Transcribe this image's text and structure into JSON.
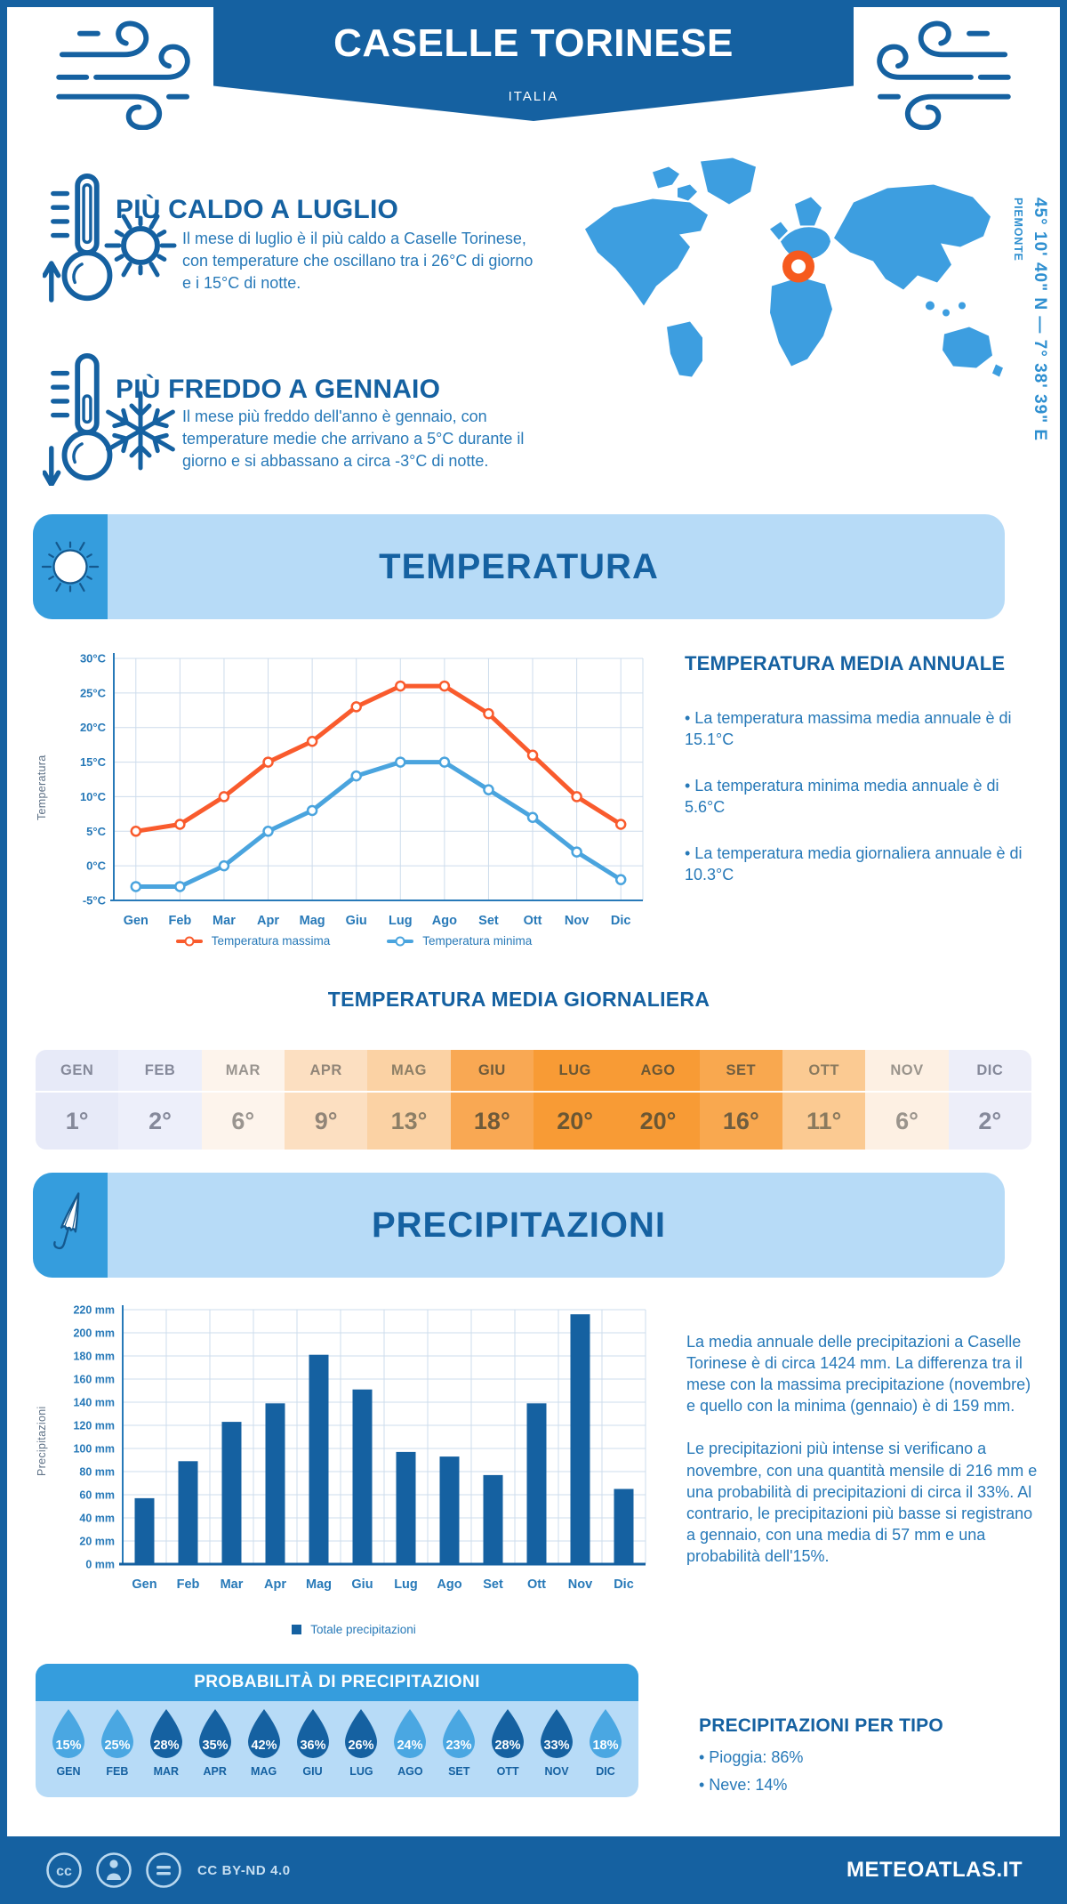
{
  "header": {
    "title": "CASELLE TORINESE",
    "subtitle": "ITALIA"
  },
  "intro": {
    "warm": {
      "title": "PIÙ CALDO A LUGLIO",
      "text": "Il mese di luglio è il più caldo a Caselle Torinese, con temperature che oscillano tra i 26°C di giorno e i 15°C di notte."
    },
    "cold": {
      "title": "PIÙ FREDDO A GENNAIO",
      "text": "Il mese più freddo dell'anno è gennaio, con temperature medie che arrivano a 5°C durante il giorno e si abbassano a circa -3°C di notte."
    },
    "map": {
      "coordinates": "45° 10' 40\" N — 7° 38' 39\" E",
      "region": "PIEMONTE"
    }
  },
  "temperature": {
    "section_title": "TEMPERATURA",
    "annual": {
      "title": "TEMPERATURA MEDIA ANNUALE",
      "bullets": [
        "• La temperatura massima media annuale è di 15.1°C",
        "• La temperatura minima media annuale è di 5.6°C",
        "• La temperatura media giornaliera annuale è di 10.3°C"
      ]
    },
    "daily_title": "TEMPERATURA MEDIA GIORNALIERA",
    "daily_table": {
      "months": [
        "GEN",
        "FEB",
        "MAR",
        "APR",
        "MAG",
        "GIU",
        "LUG",
        "AGO",
        "SET",
        "OTT",
        "NOV",
        "DIC"
      ],
      "values": [
        "1°",
        "2°",
        "6°",
        "9°",
        "13°",
        "18°",
        "20°",
        "20°",
        "16°",
        "11°",
        "6°",
        "2°"
      ],
      "cell_colors": [
        "#e7eaf8",
        "#edeffa",
        "#fdf4ec",
        "#fcdfc1",
        "#fbd2a4",
        "#f9a853",
        "#f89b35",
        "#f89b35",
        "#f9a84f",
        "#fbca92",
        "#fdf0e3",
        "#edeef9"
      ],
      "text_colors": [
        "#85899a",
        "#85899a",
        "#9a9590",
        "#918578",
        "#8d7f66",
        "#6e5a3a",
        "#6b5734",
        "#6b5734",
        "#6f5d40",
        "#8a7a5e",
        "#9a948c",
        "#85899a"
      ]
    }
  },
  "precipitation": {
    "section_title": "PRECIPITAZIONI",
    "paragraphs": [
      "La media annuale delle precipitazioni a Caselle Torinese è di circa 1424 mm. La differenza tra il mese con la massima precipitazione (novembre) e quello con la minima (gennaio) è di 159 mm.",
      "Le precipitazioni più intense si verificano a novembre, con una quantità mensile di 216 mm e una probabilità di precipitazioni di circa il 33%. Al contrario, le precipitazioni più basse si registrano a gennaio, con una media di 57 mm e una probabilità dell'15%."
    ],
    "probability": {
      "title": "PROBABILITÀ DI PRECIPITAZIONI",
      "months": [
        "GEN",
        "FEB",
        "MAR",
        "APR",
        "MAG",
        "GIU",
        "LUG",
        "AGO",
        "SET",
        "OTT",
        "NOV",
        "DIC"
      ],
      "values": [
        "15%",
        "25%",
        "28%",
        "35%",
        "42%",
        "36%",
        "26%",
        "24%",
        "23%",
        "28%",
        "33%",
        "18%"
      ],
      "dark": [
        false,
        false,
        true,
        true,
        true,
        true,
        true,
        false,
        false,
        true,
        true,
        false
      ]
    },
    "by_type": {
      "title": "PRECIPITAZIONI PER TIPO",
      "bullets": [
        "• Pioggia: 86%",
        "• Neve: 14%"
      ]
    }
  },
  "footer": {
    "license": "CC BY-ND 4.0",
    "site": "METEOATLAS.IT"
  },
  "colors": {
    "dark_blue": "#1561a1",
    "mid_blue": "#359ddd",
    "light_blue": "#b7dbf7",
    "map_blue": "#3d9ee0",
    "marker_orange": "#f65a1e",
    "grid": "#cddcec",
    "axis_blue": "#2779b8",
    "droplet_light": "#4aa7e2",
    "droplet_dark": "#1561a1",
    "body_text": "#2779b8"
  },
  "chart_data": [
    {
      "type": "line",
      "x": [
        "Gen",
        "Feb",
        "Mar",
        "Apr",
        "Mag",
        "Giu",
        "Lug",
        "Ago",
        "Set",
        "Ott",
        "Nov",
        "Dic"
      ],
      "ylabel": "Temperatura",
      "ylim": [
        -5,
        30
      ],
      "ytick_step": 5,
      "yunit": "°C",
      "grid": true,
      "legend_position": "bottom",
      "series": [
        {
          "name": "Temperatura massima",
          "color": "#f95b2d",
          "values": [
            5,
            6,
            10,
            15,
            18,
            23,
            26,
            26,
            22,
            16,
            10,
            6
          ]
        },
        {
          "name": "Temperatura minima",
          "color": "#4aa4de",
          "values": [
            -3,
            -3,
            0,
            5,
            8,
            13,
            15,
            15,
            11,
            7,
            2,
            -2
          ]
        }
      ]
    },
    {
      "type": "bar",
      "categories": [
        "Gen",
        "Feb",
        "Mar",
        "Apr",
        "Mag",
        "Giu",
        "Lug",
        "Ago",
        "Set",
        "Ott",
        "Nov",
        "Dic"
      ],
      "values": [
        57,
        89,
        123,
        139,
        181,
        151,
        97,
        93,
        77,
        139,
        216,
        65
      ],
      "series_name": "Totale precipitazioni",
      "bar_color": "#1561a1",
      "ylabel": "Precipitazioni",
      "ylim": [
        0,
        220
      ],
      "ytick_step": 20,
      "yunit": " mm",
      "grid": true,
      "legend_position": "bottom"
    }
  ]
}
